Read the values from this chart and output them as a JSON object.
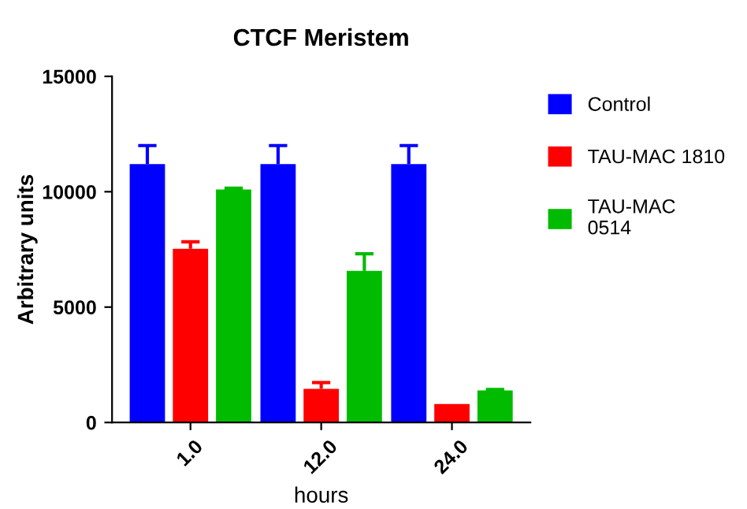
{
  "chart_data": {
    "type": "bar",
    "title": "CTCF Meristem",
    "xlabel": "hours",
    "ylabel": "Arbitrary units",
    "categories": [
      "1.0",
      "12.0",
      "24.0"
    ],
    "series": [
      {
        "name": "Control",
        "color": "#0000ff",
        "values": [
          11200,
          11200,
          11200
        ],
        "errors": [
          [
            11200,
            12000
          ],
          [
            11200,
            12000
          ],
          [
            11200,
            12000
          ]
        ]
      },
      {
        "name": "TAU-MAC 1810",
        "color": "#ff0000",
        "values": [
          7530,
          1460,
          800
        ],
        "errors": [
          [
            7530,
            7830
          ],
          [
            1460,
            1730
          ],
          null
        ]
      },
      {
        "name": "TAU-MAC\n0514",
        "color": "#00bb00",
        "values": [
          10100,
          6570,
          1390
        ],
        "errors": [
          [
            10100,
            10150
          ],
          [
            6570,
            7310
          ],
          [
            1390,
            1430
          ]
        ]
      }
    ],
    "ylim": [
      0,
      15000
    ],
    "yticks": [
      0,
      5000,
      10000,
      15000
    ],
    "grid": false,
    "legend": "right"
  }
}
